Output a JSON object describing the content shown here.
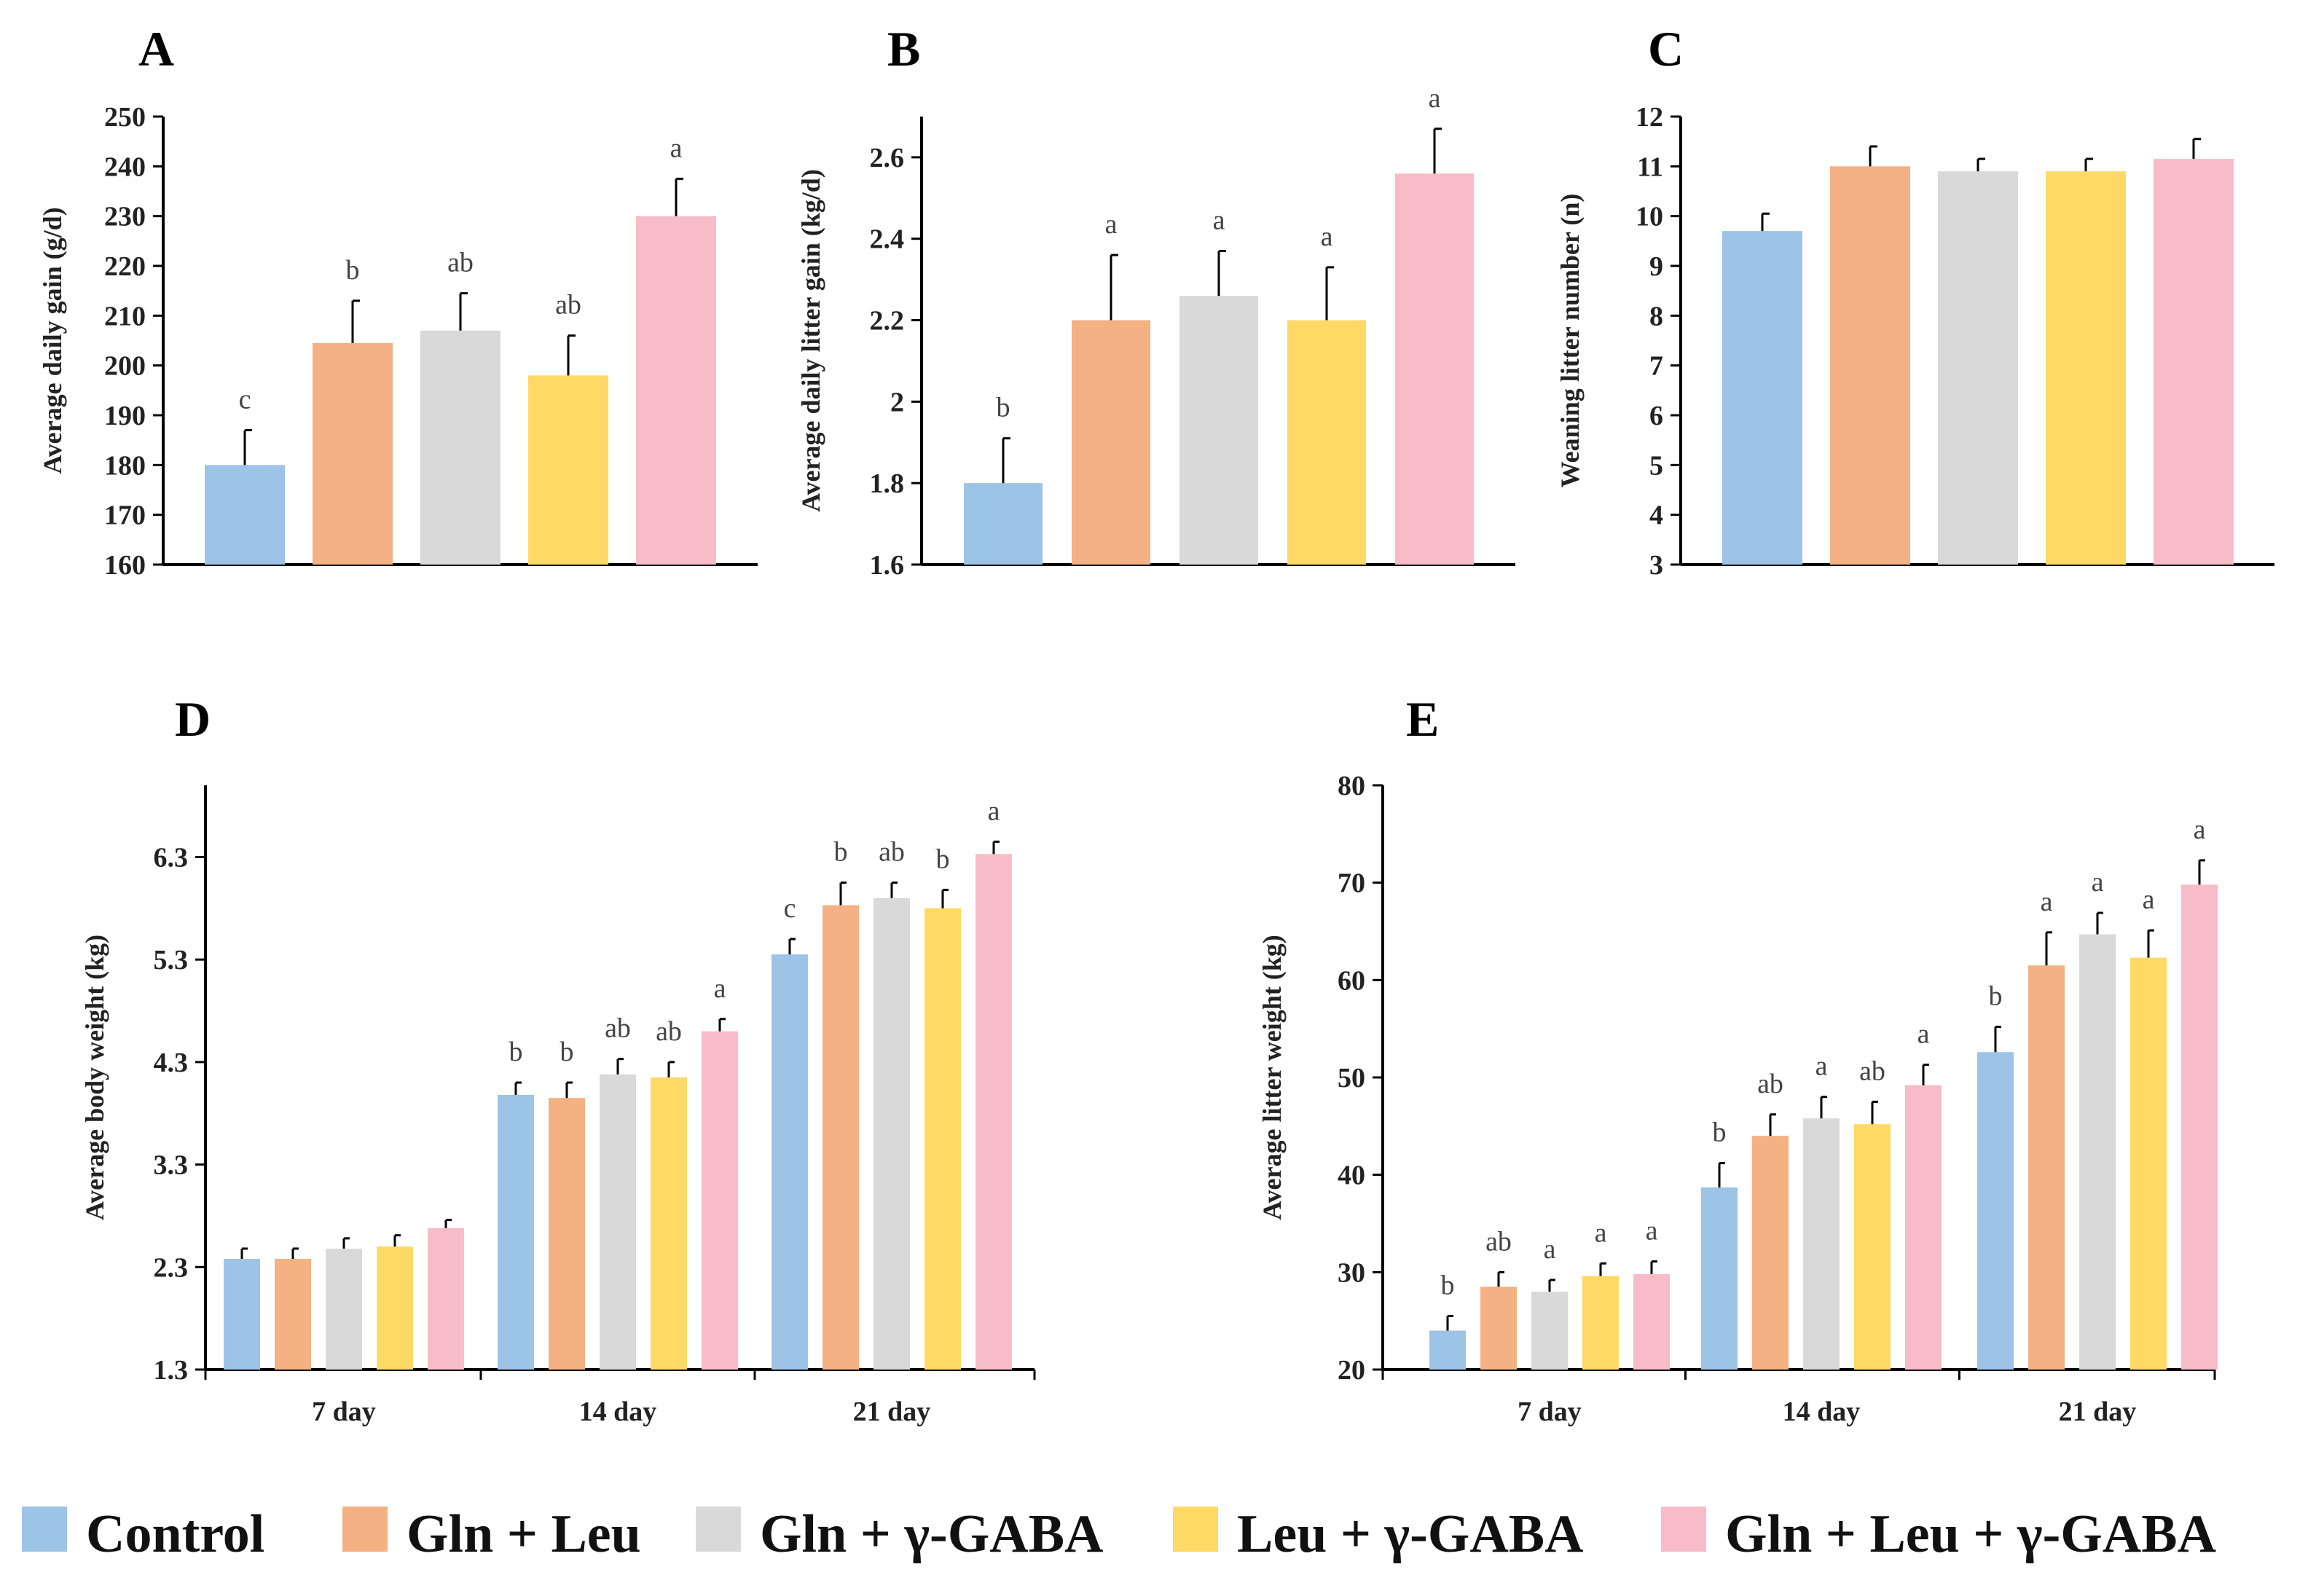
{
  "colors": {
    "Control": "#9DC3E6",
    "Gln + Leu": "#F4B183",
    "Gln + γ-GABA": "#D9D9D9",
    "Leu + γ-GABA": "#FFD966",
    "Gln + Leu + γ-GABA": "#F8BCC8"
  },
  "legend": [
    "Control",
    "Gln + Leu",
    "Gln + γ-GABA",
    "Leu + γ-GABA",
    "Gln + Leu + γ-GABA"
  ],
  "chart_data": [
    {
      "panel": "A",
      "type": "bar",
      "ylabel": "Average daily gain (g/d)",
      "ylim": [
        160,
        250
      ],
      "yticks": [
        "160",
        "170",
        "180",
        "190",
        "200",
        "210",
        "220",
        "230",
        "240",
        "250"
      ],
      "series": [
        {
          "name": "Control",
          "value": 180,
          "error": 7,
          "sig": "c"
        },
        {
          "name": "Gln + Leu",
          "value": 204.5,
          "error": 8.5,
          "sig": "b"
        },
        {
          "name": "Gln + γ-GABA",
          "value": 207,
          "error": 7.5,
          "sig": "ab"
        },
        {
          "name": "Leu + γ-GABA",
          "value": 198,
          "error": 8,
          "sig": "ab"
        },
        {
          "name": "Gln + Leu + γ-GABA",
          "value": 230,
          "error": 7.5,
          "sig": "a"
        }
      ]
    },
    {
      "panel": "B",
      "type": "bar",
      "ylabel": "Average daily litter gain (kg/d)",
      "ylim": [
        1.6,
        2.7
      ],
      "yticks": [
        "1.6",
        "1.8",
        "2",
        "2.2",
        "2.4",
        "2.6"
      ],
      "series": [
        {
          "name": "Control",
          "value": 1.8,
          "error": 0.11,
          "sig": "b"
        },
        {
          "name": "Gln + Leu",
          "value": 2.2,
          "error": 0.16,
          "sig": "a"
        },
        {
          "name": "Gln + γ-GABA",
          "value": 2.26,
          "error": 0.11,
          "sig": "a"
        },
        {
          "name": "Leu + γ-GABA",
          "value": 2.2,
          "error": 0.13,
          "sig": "a"
        },
        {
          "name": "Gln + Leu + γ-GABA",
          "value": 2.56,
          "error": 0.11,
          "sig": "a"
        }
      ]
    },
    {
      "panel": "C",
      "type": "bar",
      "ylabel": "Weaning litter number (n)",
      "ylim": [
        3,
        12
      ],
      "yticks": [
        "3",
        "4",
        "5",
        "6",
        "7",
        "8",
        "9",
        "10",
        "11",
        "12"
      ],
      "series": [
        {
          "name": "Control",
          "value": 9.7,
          "error": 0.35,
          "sig": ""
        },
        {
          "name": "Gln + Leu",
          "value": 11,
          "error": 0.4,
          "sig": ""
        },
        {
          "name": "Gln + γ-GABA",
          "value": 10.9,
          "error": 0.25,
          "sig": ""
        },
        {
          "name": "Leu + γ-GABA",
          "value": 10.9,
          "error": 0.25,
          "sig": ""
        },
        {
          "name": "Gln + Leu + γ-GABA",
          "value": 11.15,
          "error": 0.4,
          "sig": ""
        }
      ]
    },
    {
      "panel": "D",
      "type": "bar",
      "ylabel": "Average body weight (kg)",
      "ylim": [
        1.3,
        7.0
      ],
      "yticks": [
        "1.3",
        "2.3",
        "3.3",
        "4.3",
        "5.3",
        "6.3"
      ],
      "categories": [
        "7 day",
        "14 day",
        "21 day"
      ],
      "series": [
        {
          "name": "Control",
          "values": [
            2.38,
            3.98,
            5.35
          ],
          "errors": [
            0.1,
            0.12,
            0.15
          ],
          "sig": [
            "",
            "b",
            "c"
          ]
        },
        {
          "name": "Gln + Leu",
          "values": [
            2.38,
            3.95,
            5.83
          ],
          "errors": [
            0.1,
            0.15,
            0.22
          ],
          "sig": [
            "",
            "b",
            "b"
          ]
        },
        {
          "name": "Gln + γ-GABA",
          "values": [
            2.48,
            4.18,
            5.9
          ],
          "errors": [
            0.1,
            0.15,
            0.15
          ],
          "sig": [
            "",
            "ab",
            "ab"
          ]
        },
        {
          "name": "Leu + γ-GABA",
          "values": [
            2.5,
            4.15,
            5.8
          ],
          "errors": [
            0.11,
            0.15,
            0.18
          ],
          "sig": [
            "",
            "ab",
            "b"
          ]
        },
        {
          "name": "Gln + Leu + γ-GABA",
          "values": [
            2.68,
            4.6,
            6.33
          ],
          "errors": [
            0.08,
            0.12,
            0.12
          ],
          "sig": [
            "",
            "a",
            "a"
          ]
        }
      ]
    },
    {
      "panel": "E",
      "type": "bar",
      "ylabel": "Average litter weight (kg)",
      "ylim": [
        20,
        80
      ],
      "yticks": [
        "20",
        "30",
        "40",
        "50",
        "60",
        "70",
        "80"
      ],
      "categories": [
        "7 day",
        "14 day",
        "21 day"
      ],
      "series": [
        {
          "name": "Control",
          "values": [
            24,
            38.7,
            52.6
          ],
          "errors": [
            1.5,
            2.5,
            2.6
          ],
          "sig": [
            "b",
            "b",
            "b"
          ]
        },
        {
          "name": "Gln + Leu",
          "values": [
            28.5,
            44,
            61.5
          ],
          "errors": [
            1.5,
            2.2,
            3.4
          ],
          "sig": [
            "ab",
            "ab",
            "a"
          ]
        },
        {
          "name": "Gln + γ-GABA",
          "values": [
            28,
            45.8,
            64.7
          ],
          "errors": [
            1.2,
            2.2,
            2.2
          ],
          "sig": [
            "a",
            "a",
            "a"
          ]
        },
        {
          "name": "Leu + γ-GABA",
          "values": [
            29.6,
            45.2,
            62.3
          ],
          "errors": [
            1.3,
            2.3,
            2.8
          ],
          "sig": [
            "a",
            "ab",
            "a"
          ]
        },
        {
          "name": "Gln + Leu + γ-GABA",
          "values": [
            29.8,
            49.2,
            69.8
          ],
          "errors": [
            1.3,
            2.1,
            2.5
          ],
          "sig": [
            "a",
            "a",
            "a"
          ]
        }
      ]
    }
  ]
}
